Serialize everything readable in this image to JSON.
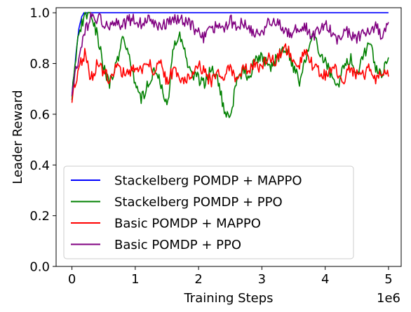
{
  "chart_data": {
    "type": "line",
    "xlabel": "Training Steps",
    "ylabel": "Leader Reward",
    "x_offset_label": "1e6",
    "xlim": [
      -0.25,
      5.2
    ],
    "ylim": [
      0.0,
      1.02
    ],
    "xticks": [
      0,
      1,
      2,
      3,
      4,
      5
    ],
    "xtick_labels": [
      "0",
      "1",
      "2",
      "3",
      "4",
      "5"
    ],
    "yticks": [
      0.0,
      0.2,
      0.4,
      0.6,
      0.8,
      1.0
    ],
    "ytick_labels": [
      "0.0",
      "0.2",
      "0.4",
      "0.6",
      "0.8",
      "1.0"
    ],
    "grid": false,
    "legend_position": "lower-left",
    "series": [
      {
        "name": "Stackelberg POMDP + MAPPO",
        "color": "#0000ff",
        "x": [
          0,
          0.05,
          0.1,
          0.15,
          0.2,
          0.3,
          1,
          2,
          3,
          4,
          5
        ],
        "y": [
          0.68,
          0.8,
          0.92,
          0.98,
          1.0,
          1.0,
          1.0,
          1.0,
          1.0,
          1.0,
          1.0
        ]
      },
      {
        "name": "Stackelberg POMDP + PPO",
        "color": "#008000",
        "x": [
          0,
          0.1,
          0.2,
          0.3,
          0.4,
          0.5,
          0.6,
          0.7,
          0.8,
          0.9,
          1.0,
          1.1,
          1.2,
          1.3,
          1.4,
          1.5,
          1.6,
          1.7,
          1.8,
          1.9,
          2.0,
          2.1,
          2.2,
          2.3,
          2.4,
          2.5,
          2.6,
          2.7,
          2.8,
          2.9,
          3.0,
          3.1,
          3.2,
          3.3,
          3.4,
          3.5,
          3.6,
          3.7,
          3.8,
          3.9,
          4.0,
          4.1,
          4.2,
          4.3,
          4.4,
          4.5,
          4.6,
          4.7,
          4.8,
          4.9,
          5.0
        ],
        "y": [
          0.68,
          0.9,
          1.0,
          0.99,
          0.92,
          0.78,
          0.72,
          0.8,
          0.9,
          0.84,
          0.72,
          0.66,
          0.72,
          0.78,
          0.72,
          0.62,
          0.85,
          0.91,
          0.82,
          0.76,
          0.74,
          0.72,
          0.78,
          0.74,
          0.62,
          0.58,
          0.73,
          0.77,
          0.75,
          0.82,
          0.84,
          0.78,
          0.81,
          0.84,
          0.86,
          0.78,
          0.73,
          0.82,
          0.9,
          0.86,
          0.8,
          0.75,
          0.72,
          0.78,
          0.82,
          0.76,
          0.83,
          0.89,
          0.78,
          0.76,
          0.82
        ]
      },
      {
        "name": "Basic POMDP + MAPPO",
        "color": "#ff0000",
        "x": [
          0,
          0.1,
          0.2,
          0.3,
          0.4,
          0.5,
          0.6,
          0.7,
          0.8,
          0.9,
          1.0,
          1.1,
          1.2,
          1.3,
          1.4,
          1.5,
          1.6,
          1.7,
          1.8,
          1.9,
          2.0,
          2.1,
          2.2,
          2.3,
          2.4,
          2.5,
          2.6,
          2.7,
          2.8,
          2.9,
          3.0,
          3.1,
          3.2,
          3.3,
          3.4,
          3.5,
          3.6,
          3.7,
          3.8,
          3.9,
          4.0,
          4.1,
          4.2,
          4.3,
          4.4,
          4.5,
          4.6,
          4.7,
          4.8,
          4.9,
          5.0
        ],
        "y": [
          0.67,
          0.78,
          0.84,
          0.74,
          0.8,
          0.76,
          0.74,
          0.78,
          0.77,
          0.76,
          0.79,
          0.77,
          0.82,
          0.76,
          0.8,
          0.73,
          0.77,
          0.75,
          0.74,
          0.76,
          0.8,
          0.76,
          0.73,
          0.77,
          0.75,
          0.78,
          0.73,
          0.79,
          0.77,
          0.8,
          0.78,
          0.83,
          0.81,
          0.84,
          0.86,
          0.82,
          0.8,
          0.85,
          0.79,
          0.77,
          0.75,
          0.79,
          0.76,
          0.74,
          0.78,
          0.76,
          0.75,
          0.78,
          0.74,
          0.77,
          0.75
        ]
      },
      {
        "name": "Basic POMDP + PPO",
        "color": "#800080",
        "x": [
          0,
          0.1,
          0.2,
          0.3,
          0.4,
          0.5,
          0.6,
          0.7,
          0.8,
          0.9,
          1.0,
          1.1,
          1.2,
          1.3,
          1.4,
          1.5,
          1.6,
          1.7,
          1.8,
          1.9,
          2.0,
          2.1,
          2.2,
          2.3,
          2.4,
          2.5,
          2.6,
          2.7,
          2.8,
          2.9,
          3.0,
          3.1,
          3.2,
          3.3,
          3.4,
          3.5,
          3.6,
          3.7,
          3.8,
          3.9,
          4.0,
          4.1,
          4.2,
          4.3,
          4.4,
          4.5,
          4.6,
          4.7,
          4.8,
          4.9,
          5.0
        ],
        "y": [
          0.7,
          0.82,
          0.92,
          0.99,
          0.98,
          0.96,
          0.94,
          0.97,
          0.95,
          0.97,
          0.98,
          0.95,
          0.97,
          0.96,
          0.94,
          0.96,
          0.98,
          0.97,
          0.96,
          0.95,
          0.92,
          0.9,
          0.93,
          0.96,
          0.94,
          0.97,
          0.95,
          0.96,
          0.94,
          0.92,
          0.91,
          0.96,
          0.97,
          0.95,
          0.93,
          0.92,
          0.95,
          0.94,
          0.91,
          0.93,
          0.96,
          0.92,
          0.89,
          0.93,
          0.92,
          0.9,
          0.93,
          0.92,
          0.94,
          0.91,
          0.97
        ]
      }
    ]
  }
}
